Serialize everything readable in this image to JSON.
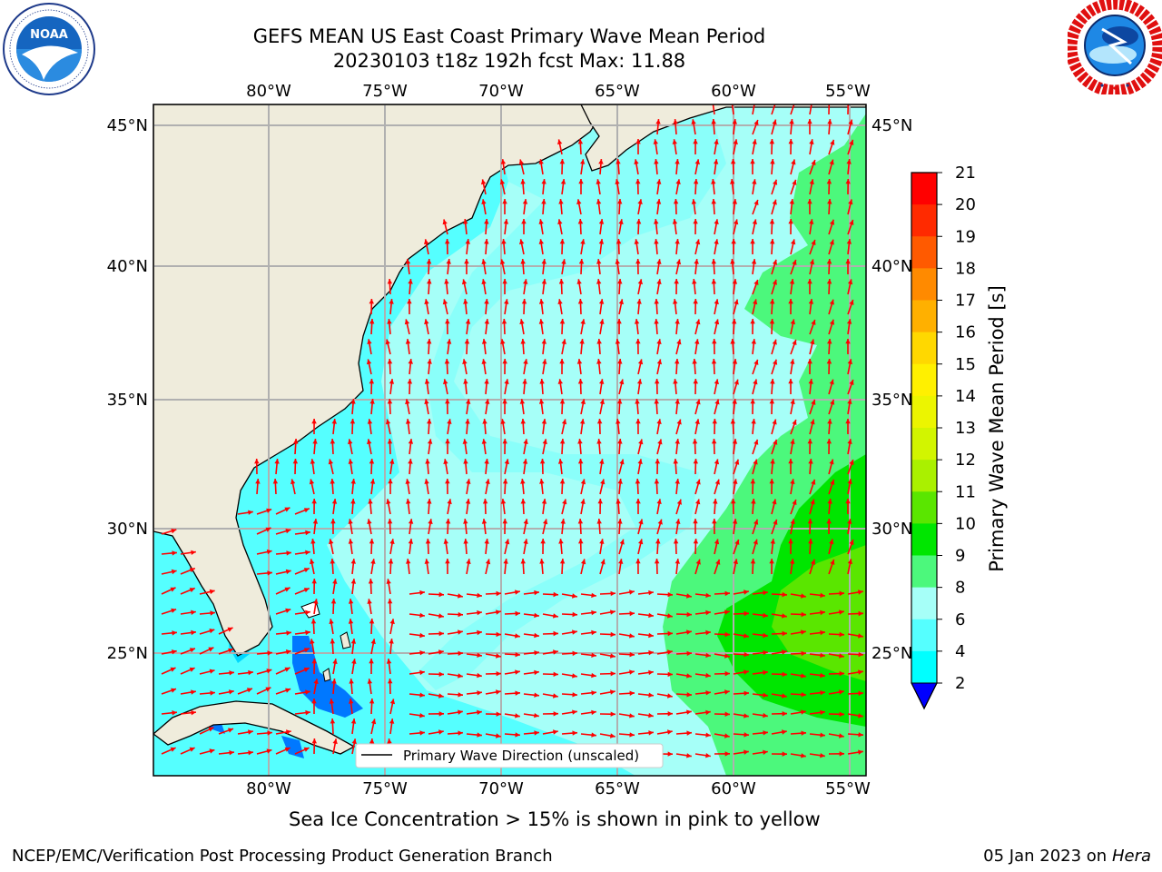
{
  "title_line1": "GEFS MEAN US East Coast Primary Wave Mean Period",
  "title_line2": "20230103 t18z 192h fcst   Max: 11.88",
  "note": "Sea Ice Concentration > 15% is shown in pink to yellow",
  "footer_left": "NCEP/EMC/Verification Post Processing Product Generation Branch",
  "footer_date": "05 Jan 2023 on ",
  "footer_host": "Hera",
  "logos": {
    "noaa_text": "NOAA",
    "noaa_ring_text": "NATIONAL OCEANIC AND ATMOSPHERIC ADMINISTRATION · U.S. DEPARTMENT OF COMMERCE",
    "nws_ring_text": "NATIONAL WEATHER SERVICE"
  },
  "map": {
    "lon_labels": [
      "80°W",
      "75°W",
      "70°W",
      "65°W",
      "60°W",
      "55°W"
    ],
    "lat_labels": [
      "45°N",
      "40°N",
      "35°N",
      "30°N",
      "25°N"
    ],
    "legend_label": "Primary Wave Direction (unscaled)",
    "colors": {
      "land": "#efecdc",
      "grid": "#b0b0b0",
      "arrow": "#ff0000"
    }
  },
  "colorbar": {
    "label": "Primary Wave Mean Period [s]",
    "ticks": [
      "21",
      "20",
      "19",
      "18",
      "17",
      "16",
      "15",
      "14",
      "13",
      "12",
      "11",
      "10",
      "9",
      "8",
      "6",
      "4",
      "2"
    ],
    "colors": [
      "#ff0000",
      "#ff2a00",
      "#ff5a00",
      "#ff8a00",
      "#ffb000",
      "#ffd800",
      "#fff000",
      "#ecf500",
      "#d2f500",
      "#aaf000",
      "#5ae600",
      "#00e600",
      "#4cf87c",
      "#a6fff8",
      "#55ffff",
      "#00ffff",
      "#00d8ff",
      "#0078ff",
      "#0000ff"
    ]
  }
}
